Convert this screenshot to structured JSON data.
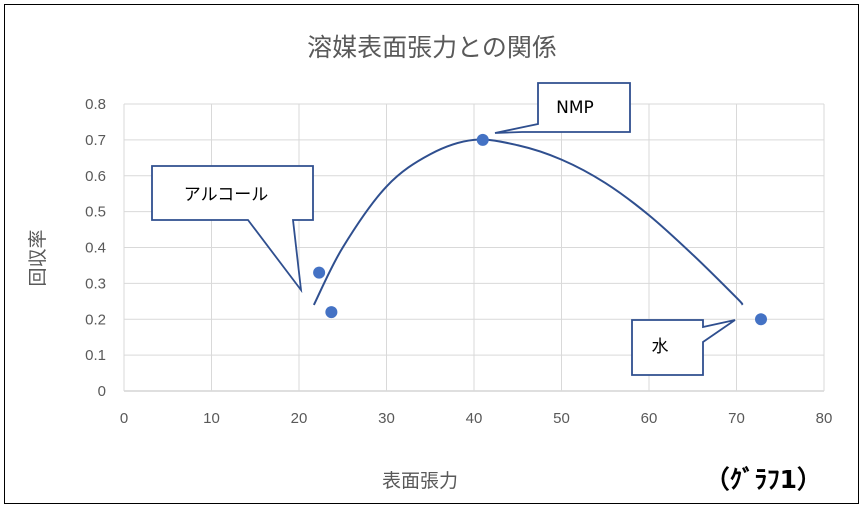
{
  "chart_data": {
    "type": "scatter",
    "title": "溶媒表面張力との関係",
    "xlabel": "表面張力",
    "ylabel": "回収率",
    "xlim": [
      0,
      80
    ],
    "ylim": [
      0,
      0.8
    ],
    "x_ticks": [
      "0",
      "10",
      "20",
      "30",
      "40",
      "50",
      "60",
      "70",
      "80"
    ],
    "y_ticks": [
      "0",
      "0.1",
      "0.2",
      "0.3",
      "0.4",
      "0.5",
      "0.6",
      "0.7",
      "0.8"
    ],
    "grid": true,
    "series": [
      {
        "points": [
          {
            "x": 22.3,
            "y": 0.33
          },
          {
            "x": 23.7,
            "y": 0.22
          },
          {
            "x": 41.0,
            "y": 0.7
          },
          {
            "x": 72.8,
            "y": 0.2
          }
        ],
        "color": "#4472C4"
      }
    ],
    "trendline": {
      "color": "#2F4F8F",
      "points": [
        {
          "x": 21.7,
          "y": 0.24
        },
        {
          "x": 25.0,
          "y": 0.4
        },
        {
          "x": 30.0,
          "y": 0.57
        },
        {
          "x": 35.0,
          "y": 0.66
        },
        {
          "x": 40.0,
          "y": 0.7
        },
        {
          "x": 45.0,
          "y": 0.685
        },
        {
          "x": 50.0,
          "y": 0.645
        },
        {
          "x": 55.0,
          "y": 0.58
        },
        {
          "x": 60.0,
          "y": 0.49
        },
        {
          "x": 65.0,
          "y": 0.38
        },
        {
          "x": 70.0,
          "y": 0.26
        },
        {
          "x": 70.7,
          "y": 0.24
        }
      ]
    },
    "annotations": [
      {
        "text": "NMP"
      },
      {
        "text": "アルコール"
      },
      {
        "text": "水"
      }
    ]
  },
  "figure_label": "（ｸﾞﾗﾌ1）"
}
